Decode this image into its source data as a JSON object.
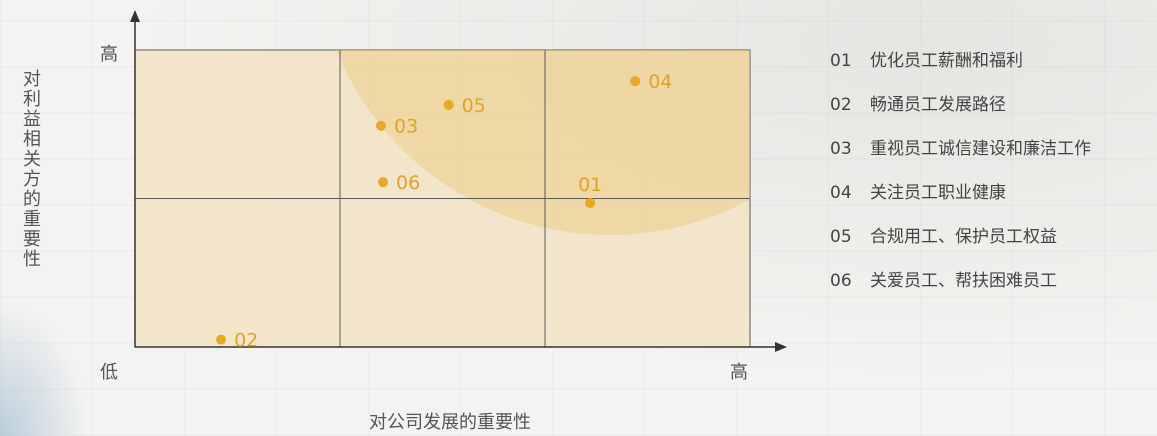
{
  "chart_data": {
    "type": "scatter",
    "title": "",
    "xlabel": "对公司发展的重要性",
    "ylabel": "对利益相关方的重要性",
    "x_tick_labels": {
      "low": "低",
      "high": "高"
    },
    "y_tick_labels": {
      "high": "高"
    },
    "xlim": [
      0,
      3
    ],
    "ylim": [
      0,
      2
    ],
    "grid": {
      "columns": 3,
      "rows": 2
    },
    "points": [
      {
        "label": "01",
        "x": 2.22,
        "y": 0.97
      },
      {
        "label": "02",
        "x": 0.42,
        "y": 0.05
      },
      {
        "label": "03",
        "x": 1.2,
        "y": 1.49
      },
      {
        "label": "04",
        "x": 2.44,
        "y": 1.79
      },
      {
        "label": "05",
        "x": 1.53,
        "y": 1.63
      },
      {
        "label": "06",
        "x": 1.21,
        "y": 1.11
      }
    ],
    "colors": {
      "point": "#e8a922",
      "label": "#e0a32a",
      "panel_fill": "#f2e3c4",
      "highlight_fill": "#ecc878",
      "grid_line": "#5a5a5a"
    }
  },
  "legend": [
    {
      "num": "01",
      "text": "优化员工薪酬和福利"
    },
    {
      "num": "02",
      "text": "畅通员工发展路径"
    },
    {
      "num": "03",
      "text": "重视员工诚信建设和廉洁工作"
    },
    {
      "num": "04",
      "text": "关注员工职业健康"
    },
    {
      "num": "05",
      "text": "合规用工、保护员工权益"
    },
    {
      "num": "06",
      "text": "关爱员工、帮扶困难员工"
    }
  ]
}
